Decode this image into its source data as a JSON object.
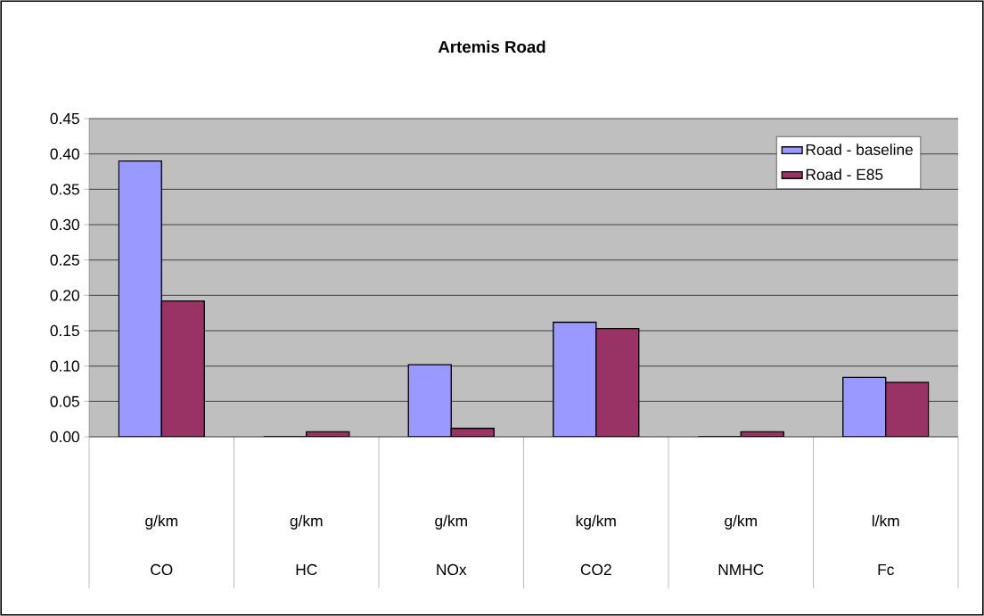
{
  "chart_data": {
    "type": "bar",
    "title": "Artemis Road",
    "categories": [
      "g/km CO",
      "g/km HC",
      "g/km NOx",
      "kg/km CO2",
      "g/km NMHC",
      "l/km Fc"
    ],
    "series": [
      {
        "name": "Road - baseline",
        "color": "#9999ff",
        "values": [
          0.39,
          0,
          0.102,
          0.162,
          0,
          0.084
        ]
      },
      {
        "name": "Road - E85",
        "color": "#993366",
        "values": [
          0.192,
          0.007,
          0.012,
          0.153,
          0.007,
          0.077
        ]
      }
    ],
    "ylim": [
      0,
      0.45
    ],
    "yticks": [
      {
        "value": 0,
        "label": "0.00"
      },
      {
        "value": 0.05,
        "label": "0.05"
      },
      {
        "value": 0.1,
        "label": "0.10"
      },
      {
        "value": 0.15,
        "label": "0.15"
      },
      {
        "value": 0.2,
        "label": "0.20"
      },
      {
        "value": 0.25,
        "label": "0.25"
      },
      {
        "value": 0.3,
        "label": "0.30"
      },
      {
        "value": 0.35,
        "label": "0.35"
      },
      {
        "value": 0.4,
        "label": "0.40"
      },
      {
        "value": 0.45,
        "label": "0.45"
      }
    ],
    "grid": "y",
    "legend": "top right"
  }
}
